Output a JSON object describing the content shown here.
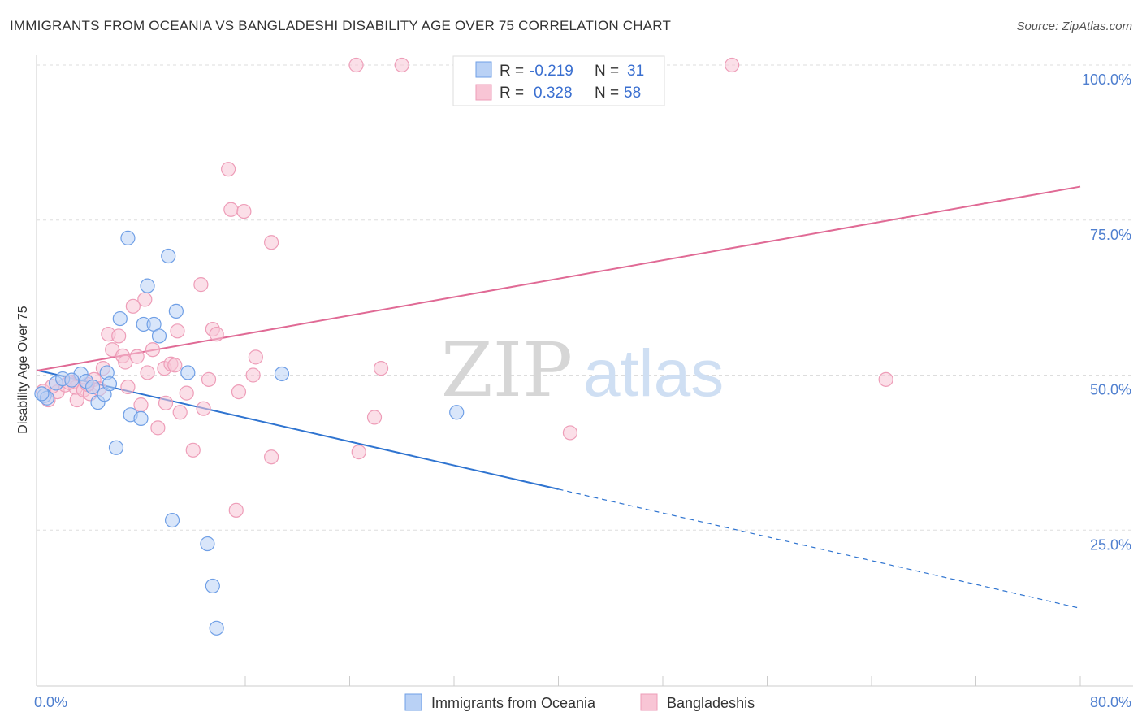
{
  "title": "IMMIGRANTS FROM OCEANIA VS BANGLADESHI DISABILITY AGE OVER 75 CORRELATION CHART",
  "source": "Source: ZipAtlas.com",
  "watermark": {
    "zip": "ZIP",
    "atlas": "atlas"
  },
  "chart_data": {
    "type": "scatter",
    "ylabel": "Disability Age Over 75",
    "xlim": [
      0,
      80
    ],
    "ylim": [
      0,
      100
    ],
    "x_ticks": [
      {
        "value": 0,
        "label": "0.0%"
      },
      {
        "value": 80,
        "label": "80.0%"
      }
    ],
    "y_ticks": [
      {
        "value": 25,
        "label": "25.0%"
      },
      {
        "value": 50,
        "label": "50.0%"
      },
      {
        "value": 75,
        "label": "75.0%"
      },
      {
        "value": 100,
        "label": "100.0%"
      }
    ],
    "grid": true,
    "legend": {
      "placement": "top-center",
      "rows": [
        {
          "r_label": "R = ",
          "r_value": "-0.219",
          "n_label": "N = ",
          "n_value": "31"
        },
        {
          "r_label": "R = ",
          "r_value": "0.328",
          "n_label": "N = ",
          "n_value": "58"
        }
      ]
    },
    "series": [
      {
        "name": "Immigrants from Oceania",
        "color": "#6f9fe6",
        "fill": "#b9d1f5",
        "line_color": "#2f74d0",
        "trend": {
          "x0": 0,
          "y0": 50.8,
          "x1": 40,
          "y1": 31.6,
          "dash_to_x": 80,
          "dash_to_y": 12.4
        },
        "points": [
          [
            0.6,
            46.7
          ],
          [
            0.8,
            46.3
          ],
          [
            1.5,
            48.7
          ],
          [
            2.0,
            49.4
          ],
          [
            3.4,
            50.2
          ],
          [
            2.7,
            49.2
          ],
          [
            3.8,
            49.0
          ],
          [
            4.3,
            48.1
          ],
          [
            4.7,
            45.6
          ],
          [
            5.2,
            46.9
          ],
          [
            5.4,
            50.4
          ],
          [
            5.6,
            48.6
          ],
          [
            6.1,
            38.3
          ],
          [
            6.4,
            59.1
          ],
          [
            7.0,
            72.1
          ],
          [
            7.2,
            43.6
          ],
          [
            8.0,
            43.0
          ],
          [
            8.2,
            58.2
          ],
          [
            8.5,
            64.4
          ],
          [
            9.0,
            58.2
          ],
          [
            9.4,
            56.3
          ],
          [
            10.1,
            69.2
          ],
          [
            10.4,
            26.6
          ],
          [
            10.7,
            60.3
          ],
          [
            11.6,
            50.4
          ],
          [
            13.1,
            22.8
          ],
          [
            13.5,
            16.0
          ],
          [
            13.8,
            9.2
          ],
          [
            18.8,
            50.2
          ],
          [
            32.2,
            44.0
          ],
          [
            0.4,
            47.0
          ]
        ]
      },
      {
        "name": "Bangladeshis",
        "color": "#ee9db8",
        "fill": "#f8c5d5",
        "line_color": "#e06a95",
        "trend": {
          "x0": 0,
          "y0": 50.7,
          "x1": 80,
          "y1": 80.4
        },
        "points": [
          [
            0.5,
            47.4
          ],
          [
            0.9,
            46.0
          ],
          [
            1.6,
            47.3
          ],
          [
            2.2,
            48.4
          ],
          [
            2.8,
            48.9
          ],
          [
            3.0,
            48.0
          ],
          [
            3.1,
            46.0
          ],
          [
            3.6,
            47.6
          ],
          [
            4.1,
            47.0
          ],
          [
            4.4,
            49.3
          ],
          [
            4.8,
            47.8
          ],
          [
            5.1,
            51.1
          ],
          [
            5.5,
            56.6
          ],
          [
            5.8,
            54.1
          ],
          [
            6.3,
            56.3
          ],
          [
            6.6,
            53.1
          ],
          [
            6.8,
            52.1
          ],
          [
            7.0,
            48.1
          ],
          [
            7.4,
            61.1
          ],
          [
            7.7,
            53.0
          ],
          [
            8.0,
            45.2
          ],
          [
            8.3,
            62.2
          ],
          [
            8.5,
            50.4
          ],
          [
            8.9,
            54.1
          ],
          [
            9.3,
            41.5
          ],
          [
            9.8,
            51.1
          ],
          [
            9.9,
            45.5
          ],
          [
            10.3,
            51.8
          ],
          [
            10.6,
            51.6
          ],
          [
            10.8,
            57.1
          ],
          [
            11.0,
            44.0
          ],
          [
            11.5,
            47.1
          ],
          [
            12.0,
            37.9
          ],
          [
            12.6,
            64.6
          ],
          [
            12.8,
            44.6
          ],
          [
            13.2,
            49.3
          ],
          [
            13.5,
            57.4
          ],
          [
            13.8,
            56.6
          ],
          [
            14.7,
            83.2
          ],
          [
            14.9,
            76.7
          ],
          [
            15.3,
            28.2
          ],
          [
            15.5,
            47.3
          ],
          [
            15.9,
            76.4
          ],
          [
            16.6,
            50.0
          ],
          [
            16.8,
            52.9
          ],
          [
            18.0,
            71.4
          ],
          [
            18.0,
            36.8
          ],
          [
            24.5,
            100.0
          ],
          [
            24.7,
            37.6
          ],
          [
            25.9,
            43.2
          ],
          [
            26.4,
            51.1
          ],
          [
            28.0,
            100.0
          ],
          [
            40.9,
            40.7
          ],
          [
            53.3,
            100.0
          ],
          [
            65.1,
            49.3
          ],
          [
            1.2,
            48.2
          ],
          [
            2.5,
            48.8
          ],
          [
            3.9,
            48.5
          ]
        ]
      }
    ]
  }
}
